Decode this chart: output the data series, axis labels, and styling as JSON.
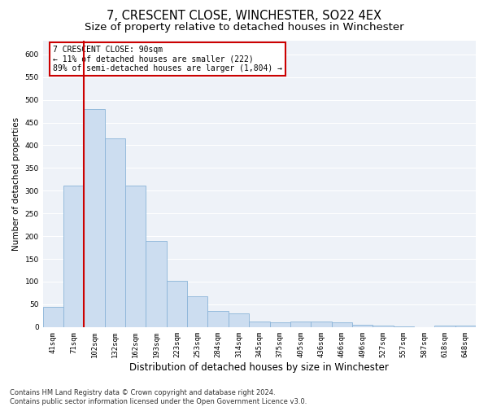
{
  "title": "7, CRESCENT CLOSE, WINCHESTER, SO22 4EX",
  "subtitle": "Size of property relative to detached houses in Winchester",
  "xlabel": "Distribution of detached houses by size in Winchester",
  "ylabel": "Number of detached properties",
  "categories": [
    "41sqm",
    "71sqm",
    "102sqm",
    "132sqm",
    "162sqm",
    "193sqm",
    "223sqm",
    "253sqm",
    "284sqm",
    "314sqm",
    "345sqm",
    "375sqm",
    "405sqm",
    "436sqm",
    "466sqm",
    "496sqm",
    "527sqm",
    "557sqm",
    "587sqm",
    "618sqm",
    "648sqm"
  ],
  "values": [
    45,
    312,
    480,
    415,
    312,
    190,
    102,
    68,
    36,
    30,
    13,
    10,
    12,
    12,
    10,
    5,
    4,
    1,
    0,
    4,
    3
  ],
  "bar_color": "#ccddf0",
  "bar_edge_color": "#8ab4d8",
  "vline_color": "#cc0000",
  "annotation_text": "7 CRESCENT CLOSE: 90sqm\n← 11% of detached houses are smaller (222)\n89% of semi-detached houses are larger (1,804) →",
  "annotation_box_color": "#ffffff",
  "annotation_box_edge_color": "#cc0000",
  "ylim": [
    0,
    630
  ],
  "yticks": [
    0,
    50,
    100,
    150,
    200,
    250,
    300,
    350,
    400,
    450,
    500,
    550,
    600
  ],
  "background_color": "#eef2f8",
  "grid_color": "#ffffff",
  "footnote": "Contains HM Land Registry data © Crown copyright and database right 2024.\nContains public sector information licensed under the Open Government Licence v3.0.",
  "title_fontsize": 10.5,
  "subtitle_fontsize": 9.5,
  "xlabel_fontsize": 8.5,
  "ylabel_fontsize": 7.5,
  "tick_fontsize": 6.5,
  "footnote_fontsize": 6.0
}
